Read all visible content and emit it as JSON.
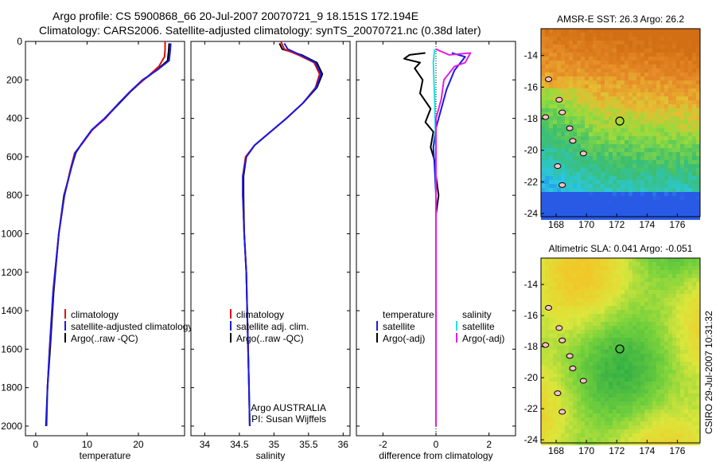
{
  "header": {
    "line1": "Argo profile: CS 5900868_66 20-Jul-2007 20070721_9 18.151S 172.194E",
    "line2": "Climatology: CARS2006. Satellite-adjusted climatology: synTS_20070721.nc (0.38d later)"
  },
  "side_label": "CSIRO 29-Jul-2007 10:31:32",
  "colors": {
    "red": "#e01010",
    "blue": "#1a1ae6",
    "black": "#000000",
    "cyan": "#22e0e0",
    "magenta": "#e020e0"
  },
  "chart_data": [
    {
      "type": "line",
      "id": "temperature",
      "xlabel": "temperature",
      "xticks": [
        0,
        10,
        20
      ],
      "xlim": [
        -2,
        29
      ],
      "ylim": [
        2050,
        0
      ],
      "yticks": [
        0,
        200,
        400,
        600,
        800,
        1000,
        1200,
        1400,
        1600,
        1800,
        2000
      ],
      "legend": [
        {
          "label": "climatology",
          "color": "#e01010"
        },
        {
          "label": "satellite-adjusted climatology",
          "color": "#1a1ae6"
        },
        {
          "label": "Argo(..raw -QC)",
          "color": "#000000"
        }
      ],
      "series": [
        {
          "color": "#000000",
          "points": [
            [
              26.0,
              10
            ],
            [
              25.9,
              50
            ],
            [
              25.7,
              100
            ],
            [
              23.5,
              150
            ],
            [
              21.0,
              200
            ],
            [
              18.5,
              260
            ],
            [
              16.0,
              330
            ],
            [
              13.5,
              400
            ],
            [
              11.0,
              460
            ],
            [
              9.0,
              530
            ],
            [
              7.8,
              580
            ],
            [
              7.0,
              650
            ],
            [
              5.5,
              800
            ],
            [
              4.5,
              1000
            ],
            [
              3.5,
              1300
            ],
            [
              2.8,
              1600
            ],
            [
              2.3,
              1800
            ],
            [
              2.0,
              2000
            ]
          ]
        },
        {
          "color": "#e01010",
          "points": [
            [
              25.2,
              0
            ],
            [
              25.2,
              40
            ],
            [
              25.1,
              80
            ],
            [
              24.0,
              130
            ],
            [
              21.5,
              190
            ],
            [
              18.8,
              250
            ],
            [
              16.2,
              320
            ],
            [
              13.6,
              400
            ],
            [
              11.0,
              460
            ],
            [
              9.1,
              530
            ],
            [
              7.6,
              580
            ],
            [
              6.8,
              660
            ],
            [
              5.6,
              800
            ],
            [
              4.5,
              1000
            ],
            [
              3.4,
              1300
            ],
            [
              2.7,
              1600
            ],
            [
              2.3,
              1800
            ]
          ]
        },
        {
          "color": "#1a1ae6",
          "points": [
            [
              26.3,
              10
            ],
            [
              26.2,
              50
            ],
            [
              26.0,
              100
            ],
            [
              23.6,
              150
            ],
            [
              20.8,
              200
            ],
            [
              18.4,
              260
            ],
            [
              15.9,
              330
            ],
            [
              13.4,
              400
            ],
            [
              10.9,
              460
            ],
            [
              9.0,
              530
            ],
            [
              7.7,
              580
            ],
            [
              6.9,
              660
            ],
            [
              5.6,
              800
            ],
            [
              4.5,
              1000
            ],
            [
              3.4,
              1300
            ],
            [
              2.7,
              1600
            ],
            [
              2.3,
              1800
            ],
            [
              2.1,
              2000
            ]
          ]
        }
      ]
    },
    {
      "type": "line",
      "id": "salinity",
      "xlabel": "salinity",
      "xticks": [
        34,
        34.5,
        35,
        35.5,
        36
      ],
      "xlim": [
        33.8,
        36.1
      ],
      "ylim": [
        2050,
        0
      ],
      "legend": [
        {
          "label": "climatology",
          "color": "#e01010"
        },
        {
          "label": "satellite adj. clim.",
          "color": "#1a1ae6"
        },
        {
          "label": "Argo(..raw -QC)",
          "color": "#000000"
        }
      ],
      "annotation": [
        "Argo AUSTRALIA",
        "PI: Susan Wijffels"
      ],
      "series": [
        {
          "color": "#000000",
          "points": [
            [
              35.08,
              10
            ],
            [
              35.12,
              40
            ],
            [
              35.4,
              70
            ],
            [
              35.62,
              110
            ],
            [
              35.7,
              170
            ],
            [
              35.62,
              240
            ],
            [
              35.42,
              320
            ],
            [
              35.18,
              400
            ],
            [
              34.95,
              470
            ],
            [
              34.72,
              540
            ],
            [
              34.6,
              600
            ],
            [
              34.56,
              700
            ],
            [
              34.56,
              800
            ],
            [
              34.57,
              1000
            ],
            [
              34.6,
              1200
            ],
            [
              34.62,
              1500
            ],
            [
              34.64,
              1800
            ],
            [
              34.65,
              2000
            ]
          ]
        },
        {
          "color": "#e01010",
          "points": [
            [
              35.1,
              0
            ],
            [
              35.15,
              40
            ],
            [
              35.35,
              70
            ],
            [
              35.58,
              110
            ],
            [
              35.66,
              170
            ],
            [
              35.6,
              240
            ],
            [
              35.42,
              320
            ],
            [
              35.18,
              400
            ],
            [
              34.95,
              470
            ],
            [
              34.72,
              540
            ],
            [
              34.59,
              600
            ],
            [
              34.55,
              700
            ],
            [
              34.55,
              800
            ],
            [
              34.57,
              1000
            ],
            [
              34.6,
              1200
            ],
            [
              34.62,
              1500
            ],
            [
              34.64,
              1800
            ]
          ]
        },
        {
          "color": "#1a1ae6",
          "points": [
            [
              35.15,
              10
            ],
            [
              35.2,
              40
            ],
            [
              35.38,
              70
            ],
            [
              35.6,
              110
            ],
            [
              35.68,
              170
            ],
            [
              35.61,
              240
            ],
            [
              35.42,
              320
            ],
            [
              35.18,
              400
            ],
            [
              34.95,
              470
            ],
            [
              34.72,
              540
            ],
            [
              34.6,
              600
            ],
            [
              34.55,
              700
            ],
            [
              34.55,
              800
            ],
            [
              34.57,
              1000
            ],
            [
              34.6,
              1200
            ],
            [
              34.62,
              1500
            ],
            [
              34.64,
              1800
            ],
            [
              34.65,
              2000
            ]
          ]
        }
      ]
    },
    {
      "type": "line",
      "id": "difference",
      "xlabel": "difference from climatology",
      "xticks": [
        -2,
        0,
        2
      ],
      "xlim": [
        -3.0,
        3.0
      ],
      "ylim": [
        2050,
        0
      ],
      "legend_left_title": "temperature",
      "legend_right_title": "salinity",
      "legend": [
        {
          "label": "satellite",
          "color": "#1a1ae6",
          "col": "left"
        },
        {
          "label": "Argo(-adj)",
          "color": "#000000",
          "col": "left"
        },
        {
          "label": "satellite",
          "color": "#22e0e0",
          "col": "right"
        },
        {
          "label": "Argo(-adj)",
          "color": "#e020e0",
          "col": "right"
        }
      ],
      "series": [
        {
          "color": "#000000",
          "points": [
            [
              -0.4,
              60
            ],
            [
              -1.0,
              70
            ],
            [
              -1.2,
              90
            ],
            [
              -0.6,
              110
            ],
            [
              -0.8,
              140
            ],
            [
              -0.5,
              200
            ],
            [
              -0.6,
              270
            ],
            [
              -0.2,
              350
            ],
            [
              -0.4,
              420
            ],
            [
              -0.1,
              470
            ],
            [
              -0.2,
              550
            ],
            [
              -0.05,
              620
            ],
            [
              0.0,
              700
            ],
            [
              0.1,
              800
            ],
            [
              0.0,
              900
            ],
            [
              0.0,
              1100
            ],
            [
              0.0,
              1500
            ],
            [
              0.0,
              2000
            ]
          ]
        },
        {
          "color": "#1a1ae6",
          "points": [
            [
              0.6,
              60
            ],
            [
              1.1,
              80
            ],
            [
              0.7,
              150
            ],
            [
              0.4,
              250
            ],
            [
              0.2,
              350
            ],
            [
              0.0,
              450
            ],
            [
              -0.1,
              550
            ],
            [
              -0.05,
              650
            ],
            [
              0.0,
              800
            ],
            [
              0.0,
              1000
            ],
            [
              0.0,
              2000
            ]
          ]
        },
        {
          "color": "#22e0e0",
          "points": [
            [
              -0.05,
              40
            ],
            [
              -0.1,
              110
            ],
            [
              -0.05,
              300
            ],
            [
              0.0,
              600
            ],
            [
              0.0,
              1000
            ],
            [
              0.0,
              2000
            ]
          ]
        },
        {
          "color": "#e020e0",
          "points": [
            [
              0.0,
              40
            ],
            [
              0.5,
              70
            ],
            [
              1.3,
              60
            ],
            [
              1.1,
              110
            ],
            [
              0.7,
              130
            ],
            [
              0.3,
              200
            ],
            [
              0.2,
              300
            ],
            [
              0.0,
              400
            ],
            [
              0.0,
              600
            ],
            [
              0.0,
              1000
            ],
            [
              0.0,
              2000
            ]
          ]
        }
      ]
    },
    {
      "type": "heatmap",
      "id": "sst",
      "title": "AMSR-E SST: 26.3 Argo: 26.2",
      "xticks": [
        168,
        170,
        172,
        174,
        176
      ],
      "yticks": [
        -14,
        -16,
        -18,
        -20,
        -22,
        -24
      ],
      "xlim": [
        167,
        177.5
      ],
      "ylim": [
        -24.2,
        -12.3
      ],
      "marker": [
        172.2,
        -18.15
      ]
    },
    {
      "type": "heatmap",
      "id": "sla",
      "title": "Altimetric SLA: 0.041 Argo: -0.051",
      "xticks": [
        168,
        170,
        172,
        174,
        176
      ],
      "yticks": [
        -14,
        -16,
        -18,
        -20,
        -22,
        -24
      ],
      "xlim": [
        167,
        177.5
      ],
      "ylim": [
        -24.2,
        -12.3
      ],
      "marker": [
        172.2,
        -18.15
      ]
    }
  ]
}
